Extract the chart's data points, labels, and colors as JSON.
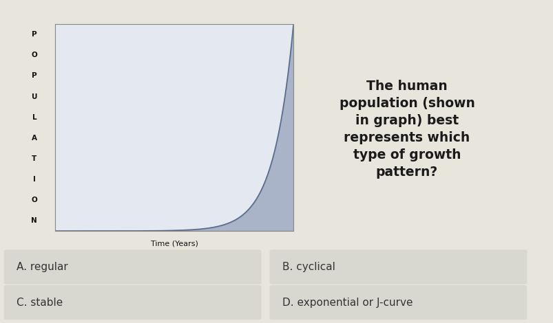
{
  "background_color": "#e8e5dc",
  "graph_bg_color": "#e4e8f0",
  "graph_line_color": "#5a6a8a",
  "graph_fill_color": "#7a8aaa",
  "ylabel_letters": [
    "P",
    "O",
    "P",
    "U",
    "L",
    "A",
    "T",
    "I",
    "O",
    "N"
  ],
  "xlabel_text": "Time (Years)",
  "question_text": "The human\npopulation (shown\nin graph) best\nrepresents which\ntype of growth\npattern?",
  "options": [
    {
      "label": "A. regular"
    },
    {
      "label": "B. cyclical"
    },
    {
      "label": "C. stable"
    },
    {
      "label": "D. exponential or J-curve"
    }
  ],
  "option_bg_color": "#d8d8d0",
  "option_text_color": "#333333",
  "question_text_color": "#1a1a1a",
  "ylabel_color": "#111111",
  "xlabel_color": "#111111",
  "graph_border_color": "#888888",
  "curve_exponent": 12,
  "curve_inflection": 0.88
}
